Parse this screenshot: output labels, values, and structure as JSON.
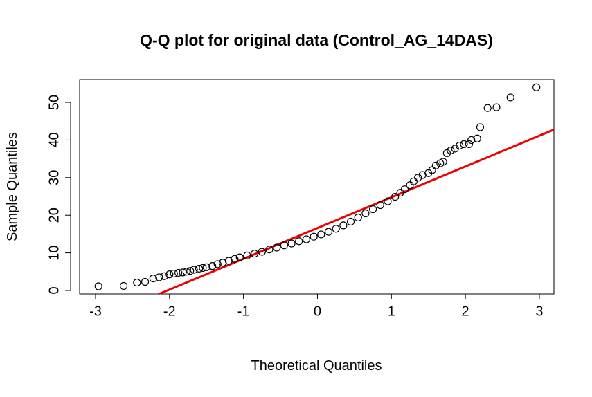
{
  "chart_data": {
    "type": "scatter",
    "title": "Q-Q plot for original data (Control_AG_14DAS)",
    "x_label": "Theoretical Quantiles",
    "y_label": "Sample Quantiles",
    "x": [
      -2.96,
      -2.62,
      -2.44,
      -2.33,
      -2.22,
      -2.14,
      -2.07,
      -2.0,
      -1.94,
      -1.88,
      -1.82,
      -1.77,
      -1.72,
      -1.67,
      -1.6,
      -1.55,
      -1.5,
      -1.42,
      -1.35,
      -1.28,
      -1.2,
      -1.12,
      -1.05,
      -0.95,
      -0.85,
      -0.75,
      -0.65,
      -0.55,
      -0.45,
      -0.35,
      -0.25,
      -0.15,
      -0.05,
      0.05,
      0.15,
      0.25,
      0.35,
      0.45,
      0.55,
      0.65,
      0.75,
      0.85,
      0.95,
      1.05,
      1.12,
      1.18,
      1.25,
      1.3,
      1.36,
      1.42,
      1.5,
      1.55,
      1.6,
      1.66,
      1.7,
      1.75,
      1.8,
      1.86,
      1.92,
      1.98,
      2.05,
      2.08,
      2.16,
      2.2,
      2.3,
      2.42,
      2.61,
      2.96
    ],
    "series": [
      {
        "color": "#000000",
        "values": [
          1.1,
          1.2,
          2.1,
          2.3,
          3.2,
          3.5,
          3.8,
          4.3,
          4.5,
          4.7,
          4.8,
          5.0,
          5.2,
          5.5,
          5.8,
          6.0,
          6.2,
          6.5,
          7.0,
          7.4,
          7.9,
          8.4,
          8.8,
          9.3,
          9.8,
          10.3,
          10.9,
          11.4,
          12.0,
          12.5,
          13.1,
          13.6,
          14.3,
          14.9,
          15.6,
          16.4,
          17.3,
          18.3,
          19.4,
          20.5,
          21.6,
          22.7,
          23.7,
          24.9,
          26.0,
          26.9,
          28.0,
          29.0,
          30.0,
          30.7,
          31.2,
          32.0,
          33.2,
          33.8,
          34.2,
          36.5,
          37.2,
          37.7,
          38.5,
          38.9,
          38.9,
          40.0,
          40.4,
          43.4,
          48.5,
          48.7,
          51.3,
          54.0
        ]
      }
    ],
    "reference_line": {
      "color": "#ee0000",
      "intercept": 16.6,
      "slope": 8.18
    },
    "xlim": [
      -3.215,
      3.197
    ],
    "ylim": [
      -0.92,
      56.07
    ],
    "xticks": [
      -3,
      -2,
      -1,
      0,
      1,
      2,
      3
    ],
    "yticks": [
      0,
      10,
      20,
      30,
      40,
      50
    ]
  }
}
